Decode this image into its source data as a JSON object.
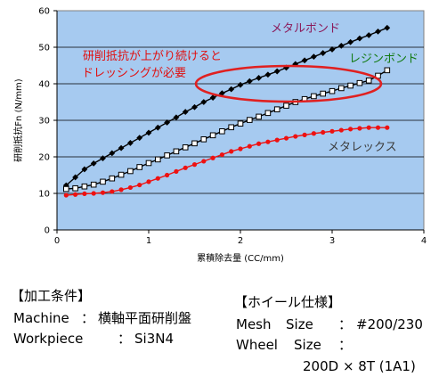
{
  "chart_data": {
    "type": "line",
    "ylabel": "研削抵抗Fn (N/mm)",
    "xlabel": "累積除去量 (CC/mm)",
    "xlim": [
      0,
      4
    ],
    "ylim": [
      0,
      60
    ],
    "xticks": [
      "0",
      "1",
      "2",
      "3",
      "4"
    ],
    "yticks": [
      "0",
      "10",
      "20",
      "30",
      "40",
      "50",
      "60"
    ],
    "grid": true,
    "plot_bg": "#a6caf0",
    "series": [
      {
        "name": "メタルボンド",
        "color": "#000000",
        "marker": "filled-diamond",
        "x": [
          0.1,
          0.2,
          0.3,
          0.4,
          0.5,
          0.6,
          0.7,
          0.8,
          0.9,
          1.0,
          1.1,
          1.2,
          1.3,
          1.4,
          1.5,
          1.6,
          1.7,
          1.8,
          1.9,
          2.0,
          2.1,
          2.2,
          2.3,
          2.4,
          2.5,
          2.6,
          2.7,
          2.8,
          2.9,
          3.0,
          3.1,
          3.2,
          3.3,
          3.4,
          3.5,
          3.6
        ],
        "y": [
          12.2,
          14.4,
          16.6,
          18.2,
          19.6,
          21.0,
          22.4,
          23.8,
          25.2,
          26.6,
          28.0,
          29.4,
          30.8,
          32.3,
          33.6,
          35.0,
          36.2,
          37.4,
          38.5,
          39.7,
          40.7,
          41.6,
          42.5,
          43.4,
          44.4,
          45.4,
          46.4,
          47.4,
          48.4,
          49.4,
          50.4,
          51.4,
          52.4,
          53.3,
          54.3,
          55.3
        ]
      },
      {
        "name": "レジンボンド",
        "color": "#000000",
        "marker": "hollow-square",
        "x": [
          0.1,
          0.2,
          0.3,
          0.4,
          0.5,
          0.6,
          0.7,
          0.8,
          0.9,
          1.0,
          1.1,
          1.2,
          1.3,
          1.4,
          1.5,
          1.6,
          1.7,
          1.8,
          1.9,
          2.0,
          2.1,
          2.2,
          2.3,
          2.4,
          2.5,
          2.6,
          2.7,
          2.8,
          2.9,
          3.0,
          3.1,
          3.2,
          3.3,
          3.4,
          3.5,
          3.6
        ],
        "y": [
          11.2,
          11.4,
          11.9,
          12.4,
          13.2,
          14.1,
          15.1,
          16.1,
          17.2,
          18.3,
          19.3,
          20.4,
          21.5,
          22.6,
          23.7,
          24.8,
          25.9,
          27.0,
          28.1,
          29.1,
          30.1,
          31.0,
          32.0,
          33.0,
          34.0,
          35.0,
          35.8,
          36.6,
          37.3,
          38.0,
          38.8,
          39.5,
          40.2,
          40.9,
          42.2,
          43.7
        ]
      },
      {
        "name": "メタレックス",
        "color": "#ee1111",
        "marker": "filled-circle",
        "x": [
          0.1,
          0.2,
          0.3,
          0.4,
          0.5,
          0.6,
          0.7,
          0.8,
          0.9,
          1.0,
          1.1,
          1.2,
          1.3,
          1.4,
          1.5,
          1.6,
          1.7,
          1.8,
          1.9,
          2.0,
          2.1,
          2.2,
          2.3,
          2.4,
          2.5,
          2.6,
          2.7,
          2.8,
          2.9,
          3.0,
          3.1,
          3.2,
          3.3,
          3.4,
          3.5,
          3.6
        ],
        "y": [
          9.5,
          9.7,
          9.9,
          10.0,
          10.2,
          10.5,
          11.0,
          11.6,
          12.3,
          13.2,
          14.1,
          15.0,
          16.0,
          17.0,
          17.9,
          18.8,
          19.7,
          20.6,
          21.5,
          22.2,
          22.9,
          23.6,
          24.1,
          24.6,
          25.1,
          25.6,
          26.0,
          26.4,
          26.7,
          27.0,
          27.3,
          27.6,
          27.8,
          28.0,
          28.0,
          28.0
        ]
      }
    ],
    "annotations": {
      "metal_label": "メタルボンド",
      "resin_label": "レジンボンド",
      "metalex_label": "メタレックス",
      "note_line1": "研削抵抗が上がり続けると",
      "note_line2": "ドレッシングが必要"
    }
  },
  "conditions": {
    "processing_title": "【加工条件】",
    "machine_label": "Machine",
    "machine_sep": "：",
    "machine_value": "横軸平面研削盤",
    "workpiece_label": "Workpiece",
    "workpiece_sep": "：",
    "workpiece_value": "Si3N4",
    "wheel_title": "【ホイール仕様】",
    "mesh_label": "Mesh",
    "size_label": "Size",
    "mesh_sep": "：",
    "mesh_value": "#200/230",
    "wheel_label": "Wheel",
    "wheel_size_label": "Size",
    "wheel_sep": "：",
    "wheel_value": "200D × 8T  (1A1)"
  }
}
